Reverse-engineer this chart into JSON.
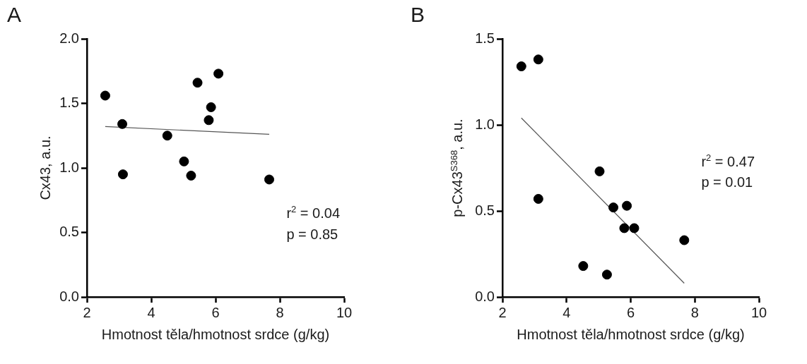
{
  "chart_data": [
    {
      "type": "scatter",
      "title": "A",
      "xlabel": "Hmotnost těla/hmotnost srdce (g/kg)",
      "ylabel": "Cx43, a.u.",
      "annotations": [
        "r$^{2}$ = 0.04",
        "p = 0.85"
      ],
      "xlim": [
        2,
        10
      ],
      "xticks": [
        2,
        4,
        6,
        8,
        10
      ],
      "ylim": [
        0,
        2
      ],
      "yticks": [
        {
          "value": 0,
          "label": "0.0"
        },
        {
          "value": 0.5,
          "label": "0.5"
        },
        {
          "value": 1,
          "label": "1.0"
        },
        {
          "value": 1.5,
          "label": "1.5"
        },
        {
          "value": 2,
          "label": "2.0"
        }
      ],
      "grid": false,
      "legend": false,
      "marker": "circle",
      "series": [
        {
          "color": "#000000",
          "x": [
            2.57,
            3.1,
            3.12,
            4.5,
            5.02,
            5.24,
            5.44,
            5.79,
            5.86,
            6.09,
            7.67
          ],
          "values": [
            1.56,
            1.34,
            0.95,
            1.25,
            1.05,
            0.94,
            1.66,
            1.37,
            1.47,
            1.73,
            0.91
          ]
        },
        {
          "type": "line",
          "color": "#555555",
          "marker": "none",
          "x": [
            2.57,
            7.67
          ],
          "values": [
            1.32,
            1.26
          ]
        }
      ]
    },
    {
      "type": "scatter",
      "title": "B",
      "xlabel": "Hmotnost těla/hmotnost srdce (g/kg)",
      "ylabel": "p-Cx43$^{S368}$, a.u.",
      "annotations": [
        "r$^{2}$ = 0.47",
        "p = 0.01"
      ],
      "xlim": [
        2,
        10
      ],
      "xticks": [
        2,
        4,
        6,
        8,
        10
      ],
      "ylim": [
        0,
        1.5
      ],
      "yticks": [
        {
          "value": 0,
          "label": "0.0"
        },
        {
          "value": 0.5,
          "label": "0.5"
        },
        {
          "value": 1,
          "label": "1.0"
        },
        {
          "value": 1.5,
          "label": "1.5"
        }
      ],
      "grid": false,
      "legend": false,
      "marker": "circle",
      "series": [
        {
          "color": "#000000",
          "x": [
            2.59,
            3.12,
            3.12,
            4.52,
            5.03,
            5.26,
            5.46,
            5.88,
            5.8,
            6.11,
            7.67
          ],
          "values": [
            1.34,
            1.38,
            0.57,
            0.18,
            0.73,
            0.13,
            0.52,
            0.53,
            0.4,
            0.4,
            0.33
          ]
        },
        {
          "type": "line",
          "color": "#555555",
          "marker": "none",
          "x": [
            2.59,
            7.67
          ],
          "values": [
            1.04,
            0.08
          ]
        }
      ]
    }
  ]
}
